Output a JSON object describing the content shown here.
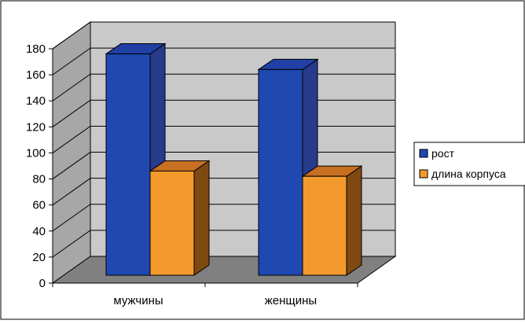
{
  "chart_data": {
    "type": "bar",
    "categories": [
      "мужчины",
      "женщины"
    ],
    "series": [
      {
        "name": "рост",
        "values": [
          170,
          158
        ]
      },
      {
        "name": "длина корпуса",
        "values": [
          80,
          76
        ]
      }
    ],
    "ylim": [
      0,
      180
    ],
    "yticks": [
      0,
      20,
      40,
      60,
      80,
      100,
      120,
      140,
      160,
      180
    ],
    "grid": true,
    "legend": "right",
    "colors": {
      "series": [
        {
          "front": "#1f49b1",
          "top": "#2140a6",
          "side": "#283a8c"
        },
        {
          "front": "#f49a2c",
          "top": "#c86f22",
          "side": "#7f4a12"
        }
      ],
      "back_wall": "#c9c9c9",
      "side_wall": "#a7a7a7",
      "floor": "#808080",
      "grid": "#000000"
    }
  }
}
